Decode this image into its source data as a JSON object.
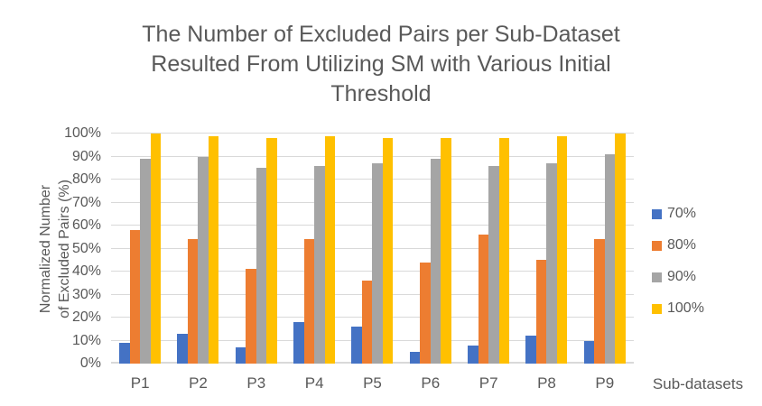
{
  "chart_data": {
    "type": "bar",
    "title": "The Number of Excluded Pairs per Sub-Dataset Resulted From Utilizing SM with Various Initial Threshold",
    "title_lines": [
      "The Number of Excluded Pairs per Sub-Dataset",
      "Resulted From Utilizing SM with Various Initial",
      "Threshold"
    ],
    "xlabel": "Sub-datasets",
    "ylabel": "Normalized Number of Excluded Pairs (%)",
    "ylabel_lines": [
      "Normalized Number",
      "of Excluded Pairs (%)"
    ],
    "categories": [
      "P1",
      "P2",
      "P3",
      "P4",
      "P5",
      "P6",
      "P7",
      "P8",
      "P9"
    ],
    "series": [
      {
        "name": "70%",
        "color": "#4472C4",
        "values": [
          9,
          13,
          7,
          18,
          16,
          5,
          8,
          12,
          10
        ]
      },
      {
        "name": "80%",
        "color": "#ED7D31",
        "values": [
          58,
          54,
          41,
          54,
          36,
          44,
          56,
          45,
          54
        ]
      },
      {
        "name": "90%",
        "color": "#A5A5A5",
        "values": [
          89,
          90,
          85,
          86,
          87,
          89,
          86,
          87,
          91
        ]
      },
      {
        "name": "100%",
        "color": "#FFC000",
        "values": [
          100,
          99,
          98,
          99,
          98,
          98,
          98,
          99,
          100
        ]
      }
    ],
    "ylim": [
      0,
      100
    ],
    "yticks": [
      0,
      10,
      20,
      30,
      40,
      50,
      60,
      70,
      80,
      90,
      100
    ],
    "ytick_suffix": "%",
    "grid": true,
    "legend_position": "right",
    "colors": {
      "grid": "#D9D9D9",
      "text": "#595959",
      "background": "#FFFFFF"
    }
  }
}
